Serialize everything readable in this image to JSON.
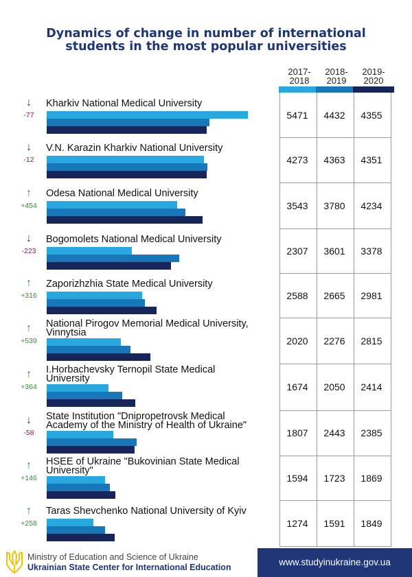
{
  "title_line1": "Dynamics of change in number of international",
  "title_line2": "students in the most popular universities",
  "years": [
    "2017-2018",
    "2018-2019",
    "2019-2020"
  ],
  "year_labels": [
    {
      "line1": "2017-",
      "line2": "2018"
    },
    {
      "line1": "2018-",
      "line2": "2019"
    },
    {
      "line1": "2019-",
      "line2": "2020"
    }
  ],
  "colors": {
    "2017-2018": "#29a8e0",
    "2018-2019": "#1777b8",
    "2019-2020": "#17255a",
    "title": "#1e3577",
    "up": "#3a8a3a",
    "down": "#8b1a4f"
  },
  "chart_data": {
    "type": "bar",
    "orientation": "horizontal",
    "title": "Dynamics of change in number of international students in the most popular universities",
    "categories": [
      "Kharkiv National Medical University",
      "V.N. Karazin Kharkiv National University",
      "Odesa National Medical University",
      "Bogomolets National Medical University",
      "Zaporizhzhia State Medical University",
      "National Pirogov Memorial Medical University, Vinnytsia",
      "I.Horbachevsky Ternopil State Medical University",
      "State Institution \"Dnipropetrovsk Medical Academy of the Ministry of Health of Ukraine\"",
      "HSEE of Ukraine \"Bukovinian State Medical University\"",
      "Taras Shevchenko National University of Kyiv"
    ],
    "series": [
      {
        "name": "2017-2018",
        "values": [
          5471,
          4273,
          3543,
          2307,
          2588,
          2020,
          1674,
          1807,
          1594,
          1274
        ]
      },
      {
        "name": "2018-2019",
        "values": [
          4432,
          4363,
          3780,
          3601,
          2665,
          2276,
          2050,
          2443,
          1723,
          1591
        ]
      },
      {
        "name": "2019-2020",
        "values": [
          4355,
          4351,
          4234,
          3378,
          2981,
          2815,
          2414,
          2385,
          1869,
          1849
        ]
      }
    ],
    "change": [
      "-77",
      "-12",
      "+454",
      "-223",
      "+316",
      "+539",
      "+364",
      "-58",
      "+146",
      "+258"
    ]
  },
  "rows": [
    {
      "name_lines": [
        "Kharkiv National Medical University"
      ]
    },
    {
      "name_lines": [
        "V.N. Karazin Kharkiv National University"
      ]
    },
    {
      "name_lines": [
        "Odesa National Medical University"
      ]
    },
    {
      "name_lines": [
        "Bogomolets National Medical University"
      ]
    },
    {
      "name_lines": [
        "Zaporizhzhia State Medical University"
      ]
    },
    {
      "name_lines": [
        "National Pirogov Memorial Medical University,",
        "Vinnytsia"
      ]
    },
    {
      "name_lines": [
        "I.Horbachevsky Ternopil State Medical",
        "University"
      ]
    },
    {
      "name_lines": [
        "State Institution \"Dnipropetrovsk Medical",
        "Academy of the Ministry of Health of Ukraine\""
      ]
    },
    {
      "name_lines": [
        "HSEE of Ukraine \"Bukovinian State Medical",
        "University\""
      ]
    },
    {
      "name_lines": [
        "Taras Shevchenko National University of Kyiv"
      ]
    }
  ],
  "footer": {
    "ministry": "Ministry of Education and Science of Ukraine",
    "center": "Ukrainian State Center for International Education",
    "url": "www.studyinukraine.gov.ua"
  },
  "icons": {
    "logo": "trident-icon",
    "up": "arrow-up-icon",
    "down": "arrow-down-icon"
  }
}
